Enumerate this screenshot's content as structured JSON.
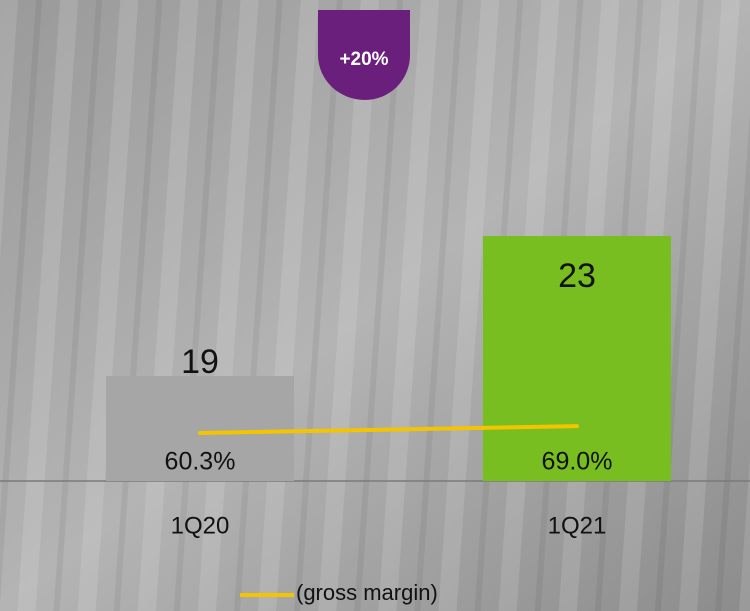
{
  "chart_data": {
    "type": "bar",
    "annotation": "+20%",
    "categories": [
      "1Q20",
      "1Q21"
    ],
    "values": [
      19,
      23
    ],
    "colors": [
      "#a6a6a6",
      "#78be20"
    ],
    "ylim": [
      16,
      26
    ],
    "line": {
      "name": "(gross margin)",
      "color": "#f5c400",
      "values": [
        60.3,
        69.0
      ],
      "value_labels": [
        "60.3%",
        "69.0%"
      ],
      "axis": "y2"
    },
    "y2lim": [
      0,
      440
    ]
  }
}
